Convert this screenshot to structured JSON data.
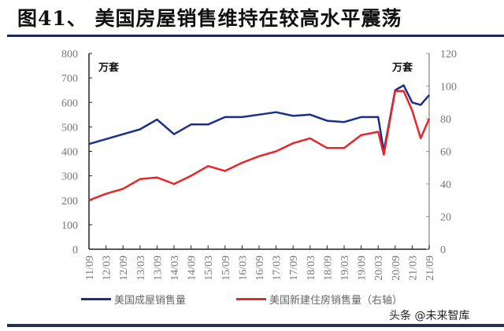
{
  "figure": {
    "title": "图41、 美国房屋销售维持在较高水平震荡",
    "watermark": "头条 @未来智库"
  },
  "chart_data": {
    "type": "line",
    "title": "图41、 美国房屋销售维持在较高水平震荡",
    "xlabel": "",
    "ylabel_left": "万套",
    "ylabel_right": "万套",
    "ylim_left": [
      0,
      800
    ],
    "ylim_right": [
      0,
      120
    ],
    "yticks_left": [
      0,
      100,
      200,
      300,
      400,
      500,
      600,
      700,
      800
    ],
    "yticks_right": [
      0,
      20,
      40,
      60,
      80,
      100,
      120
    ],
    "x_tick_labels": [
      "11/09",
      "12/03",
      "12/09",
      "13/03",
      "13/09",
      "14/03",
      "14/09",
      "15/03",
      "15/09",
      "16/03",
      "16/09",
      "17/03",
      "17/09",
      "18/03",
      "18/09",
      "19/03",
      "19/09",
      "20/03",
      "20/09",
      "21/03",
      "21/09"
    ],
    "grid": false,
    "legend_position": "bottom",
    "series": [
      {
        "name": "美国成屋销售量",
        "axis": "left",
        "color": "#1a2f8a",
        "x": [
          "11/09",
          "12/03",
          "12/09",
          "13/03",
          "13/09",
          "14/03",
          "14/09",
          "15/03",
          "15/09",
          "16/03",
          "16/09",
          "17/03",
          "17/09",
          "18/03",
          "18/09",
          "19/03",
          "19/09",
          "20/03",
          "20/05",
          "20/09",
          "20/12",
          "21/03",
          "21/06",
          "21/09"
        ],
        "values": [
          430,
          450,
          470,
          490,
          530,
          470,
          510,
          510,
          540,
          540,
          550,
          560,
          545,
          550,
          525,
          520,
          540,
          540,
          400,
          650,
          670,
          600,
          590,
          630
        ]
      },
      {
        "name": "美国新建住房销售量（右轴）",
        "axis": "right",
        "color": "#e8262a",
        "x": [
          "11/09",
          "12/03",
          "12/09",
          "13/03",
          "13/09",
          "14/03",
          "14/09",
          "15/03",
          "15/09",
          "16/03",
          "16/09",
          "17/03",
          "17/09",
          "18/03",
          "18/09",
          "19/03",
          "19/09",
          "20/03",
          "20/05",
          "20/09",
          "20/12",
          "21/03",
          "21/06",
          "21/09"
        ],
        "values": [
          30,
          34,
          37,
          43,
          44,
          40,
          45,
          51,
          48,
          53,
          57,
          60,
          65,
          68,
          62,
          62,
          70,
          72,
          58,
          97,
          97,
          85,
          68,
          80
        ]
      }
    ]
  },
  "legend": {
    "items": [
      {
        "label": "美国成屋销售量",
        "color": "#1a2f8a"
      },
      {
        "label": "美国新建住房销售量（右轴）",
        "color": "#e8262a"
      }
    ]
  }
}
